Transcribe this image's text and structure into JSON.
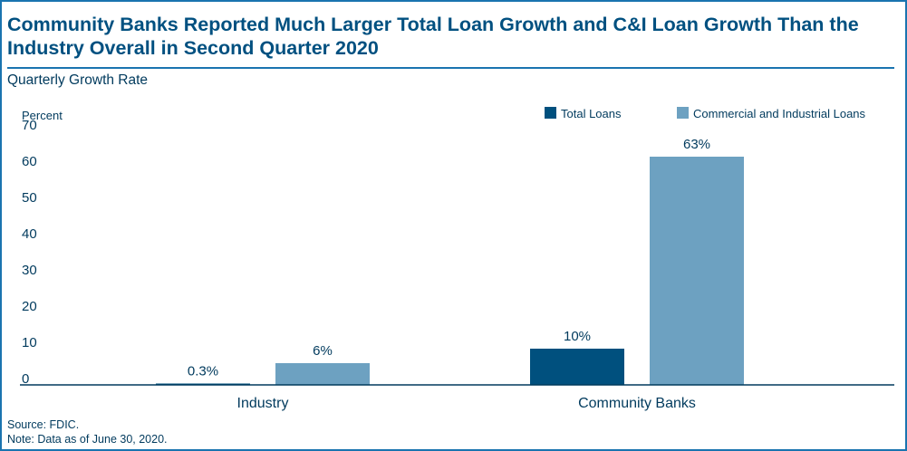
{
  "header": {
    "title": "Community Banks Reported Much Larger Total Loan Growth and C&I Loan Growth Than the Industry Overall in Second Quarter 2020",
    "subtitle": "Quarterly Growth Rate"
  },
  "footer": {
    "source": "Source: FDIC.",
    "note": "Note: Data as of June 30, 2020."
  },
  "colors": {
    "total_loans": "#00507e",
    "ci_loans": "#6da1c1",
    "text": "#003a5d",
    "frame": "#1a74b0"
  },
  "chart_data": {
    "type": "bar",
    "title": "Community Banks Reported Much Larger Total Loan Growth and C&I Loan Growth Than the Industry Overall in Second Quarter 2020",
    "subtitle": "Quarterly Growth Rate",
    "ylabel": "Percent",
    "xlabel": "",
    "ylim": [
      0,
      70
    ],
    "yticks": [
      0,
      10,
      20,
      30,
      40,
      50,
      60,
      70
    ],
    "grid": false,
    "legend_position": "top-right",
    "categories": [
      "Industry",
      "Community Banks"
    ],
    "series": [
      {
        "name": "Total Loans",
        "color": "#00507e",
        "values": [
          0.3,
          10
        ],
        "labels": [
          "0.3%",
          "10%"
        ]
      },
      {
        "name": "Commercial and Industrial Loans",
        "color": "#6da1c1",
        "values": [
          6,
          63
        ],
        "labels": [
          "6%",
          "63%"
        ]
      }
    ]
  }
}
